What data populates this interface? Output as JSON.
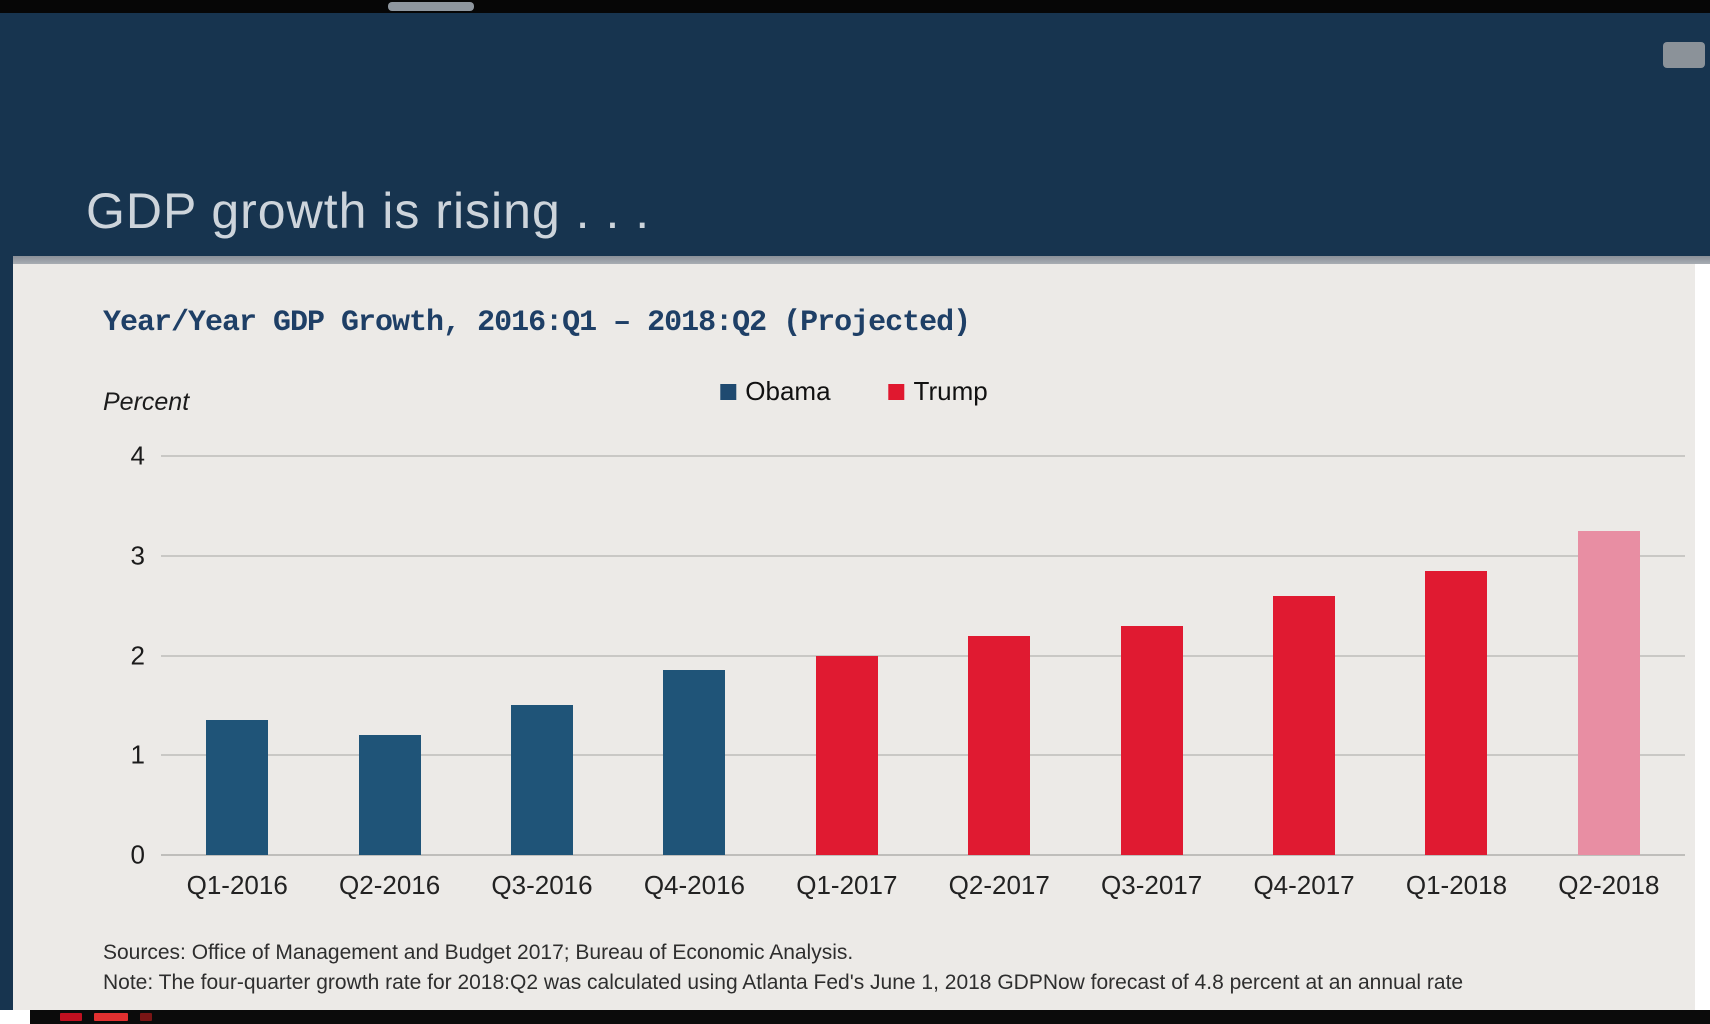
{
  "slide": {
    "header_title": "GDP growth is rising . . .",
    "chart_title": "Year/Year GDP Growth, 2016:Q1 – 2018:Q2 (Projected)",
    "y_axis_label": "Percent",
    "legend": [
      {
        "label": "Obama",
        "color": "#1f4a70"
      },
      {
        "label": "Trump",
        "color": "#e0182f"
      }
    ],
    "sources_line1": "Sources: Office of Management and Budget 2017; Bureau of Economic Analysis.",
    "sources_line2": "Note: The four-quarter growth rate for 2018:Q2 was calculated using Atlanta Fed's June 1, 2018 GDPNow forecast of 4.8 percent at an annual rate"
  },
  "chart_data": {
    "type": "bar",
    "title": "Year/Year GDP Growth, 2016:Q1 – 2018:Q2 (Projected)",
    "xlabel": "",
    "ylabel": "Percent",
    "ylim": [
      0,
      4
    ],
    "yticks": [
      0,
      1,
      2,
      3,
      4
    ],
    "grid": true,
    "legend_position": "top-center",
    "categories": [
      "Q1-2016",
      "Q2-2016",
      "Q3-2016",
      "Q4-2016",
      "Q1-2017",
      "Q2-2017",
      "Q3-2017",
      "Q4-2017",
      "Q1-2018",
      "Q2-2018"
    ],
    "series": [
      {
        "name": "Year/Year GDP Growth (percent)",
        "values": [
          1.35,
          1.2,
          1.5,
          1.85,
          2.0,
          2.2,
          2.3,
          2.6,
          2.85,
          3.25
        ]
      }
    ],
    "series_membership": [
      "Obama",
      "Obama",
      "Obama",
      "Obama",
      "Trump",
      "Trump",
      "Trump",
      "Trump",
      "Trump",
      "Trump (projected)"
    ],
    "bar_colors": [
      "#1f5478",
      "#1f5478",
      "#1f5478",
      "#1f5478",
      "#e01a31",
      "#e01a31",
      "#e01a31",
      "#e01a31",
      "#e01a31",
      "#e88ea3"
    ],
    "projected_categories": [
      "Q2-2018"
    ]
  }
}
